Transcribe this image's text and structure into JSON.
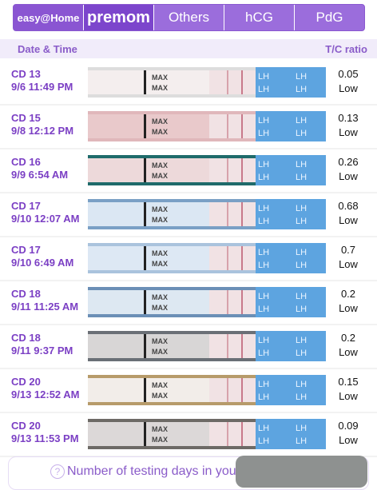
{
  "tabs": {
    "brand": "easy@Home",
    "premom": "premom",
    "items": [
      "Others",
      "hCG",
      "PdG"
    ]
  },
  "header": {
    "date_time": "Date & Time",
    "ratio": "T/C ratio"
  },
  "strip": {
    "max_label": "MAX",
    "lh_label": "LH"
  },
  "rows": [
    {
      "cd": "CD 13",
      "datetime": "9/6 11:49 PM",
      "ratio": "0.05",
      "level": "Low"
    },
    {
      "cd": "CD 15",
      "datetime": "9/8 12:12 PM",
      "ratio": "0.13",
      "level": "Low"
    },
    {
      "cd": "CD 16",
      "datetime": "9/9 6:54 AM",
      "ratio": "0.26",
      "level": "Low"
    },
    {
      "cd": "CD 17",
      "datetime": "9/10 12:07 AM",
      "ratio": "0.68",
      "level": "Low"
    },
    {
      "cd": "CD 17",
      "datetime": "9/10 6:49 AM",
      "ratio": "0.7",
      "level": "Low"
    },
    {
      "cd": "CD 18",
      "datetime": "9/11 11:25 AM",
      "ratio": "0.2",
      "level": "Low"
    },
    {
      "cd": "CD 18",
      "datetime": "9/11 9:37 PM",
      "ratio": "0.2",
      "level": "Low"
    },
    {
      "cd": "CD 20",
      "datetime": "9/13 12:52 AM",
      "ratio": "0.15",
      "level": "Low"
    },
    {
      "cd": "CD 20",
      "datetime": "9/13 11:53 PM",
      "ratio": "0.09",
      "level": "Low"
    }
  ],
  "footer": {
    "help_icon": "?",
    "text": "Number of testing days in you"
  }
}
